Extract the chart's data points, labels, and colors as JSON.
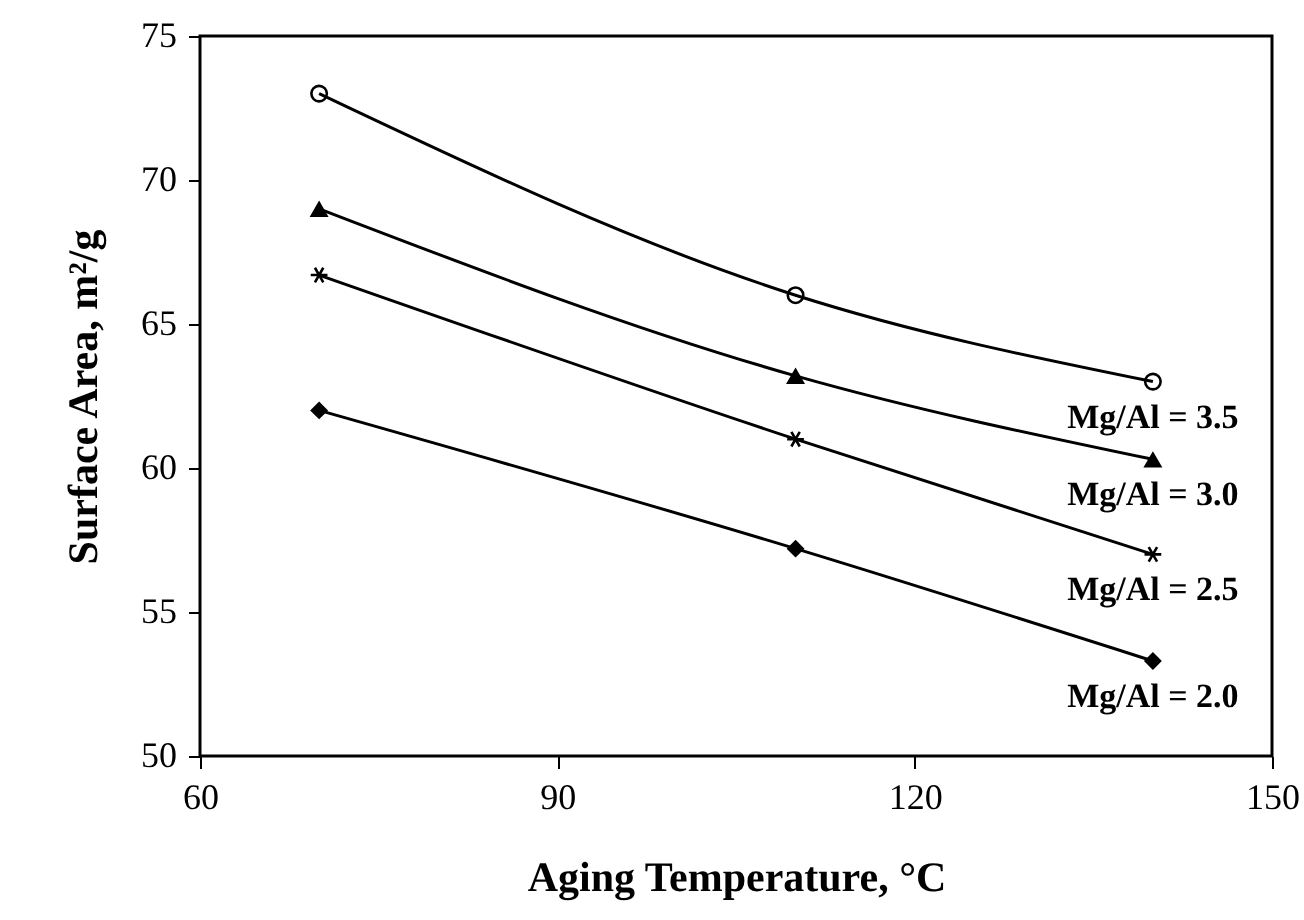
{
  "chart_data": {
    "type": "line",
    "xlabel": "Aging Temperature, °C",
    "ylabel": "Surface Area, m²/g",
    "x": [
      70,
      110,
      140
    ],
    "series": [
      {
        "name": "Mg/Al = 3.5",
        "color": "#000000",
        "marker": "circle",
        "values": [
          73,
          66,
          63
        ]
      },
      {
        "name": "Mg/Al = 3.0",
        "color": "#000000",
        "marker": "triangle",
        "values": [
          69,
          63.2,
          60.3
        ]
      },
      {
        "name": "Mg/Al = 2.5",
        "color": "#000000",
        "marker": "cross",
        "values": [
          66.7,
          61,
          57
        ]
      },
      {
        "name": "Mg/Al = 2.0",
        "color": "#000000",
        "marker": "diamond",
        "values": [
          62,
          57.2,
          53.3
        ]
      }
    ],
    "xlim": [
      60,
      150
    ],
    "xticks": [
      60,
      90,
      120,
      150
    ],
    "ylim": [
      50,
      75
    ],
    "yticks": [
      50,
      55,
      60,
      65,
      70,
      75
    ],
    "grid": false,
    "legend": "bottom right"
  }
}
